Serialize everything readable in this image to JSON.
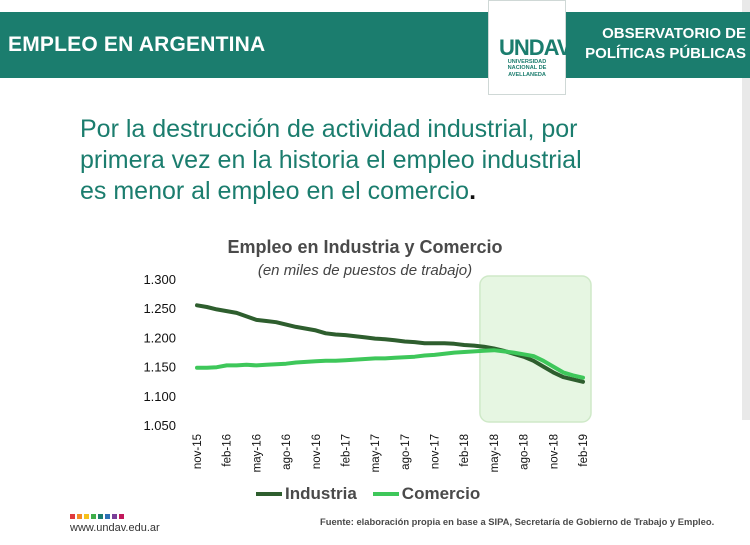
{
  "header": {
    "title": "EMPLEO EN ARGENTINA",
    "org_line1": "OBSERVATORIO DE",
    "org_line2": "POLÍTICAS PÚBLICAS",
    "logo_mark": "UNDAV",
    "logo_line1": "UNIVERSIDAD",
    "logo_line2": "NACIONAL DE",
    "logo_line3": "AVELLANEDA",
    "color": "#1b7d6e"
  },
  "headline": {
    "line1": "Por la destrucción de actividad industrial, por",
    "line2": "primera vez en la historia el empleo industrial",
    "line3": "es menor al empleo en el comercio",
    "end": "."
  },
  "chart_data": {
    "type": "line",
    "title": "Empleo en Industria y Comercio",
    "subtitle": "(en miles de puestos de trabajo)",
    "xlabel": "",
    "ylabel": "",
    "ylim": [
      1.05,
      1.3
    ],
    "yticks": [
      "1.300",
      "1.250",
      "1.200",
      "1.150",
      "1.100",
      "1.050"
    ],
    "xticks": [
      "nov-15",
      "feb-16",
      "may-16",
      "ago-16",
      "nov-16",
      "feb-17",
      "may-17",
      "ago-17",
      "nov-17",
      "feb-18",
      "may-18",
      "ago-18",
      "nov-18",
      "feb-19"
    ],
    "x": [
      "nov-15",
      "dic-15",
      "ene-16",
      "feb-16",
      "mar-16",
      "abr-16",
      "may-16",
      "jun-16",
      "jul-16",
      "ago-16",
      "sep-16",
      "oct-16",
      "nov-16",
      "dic-16",
      "ene-17",
      "feb-17",
      "mar-17",
      "abr-17",
      "may-17",
      "jun-17",
      "jul-17",
      "ago-17",
      "sep-17",
      "oct-17",
      "nov-17",
      "dic-17",
      "ene-18",
      "feb-18",
      "mar-18",
      "abr-18",
      "may-18",
      "jun-18",
      "jul-18",
      "ago-18",
      "sep-18",
      "oct-18",
      "nov-18",
      "dic-18",
      "ene-19",
      "feb-19"
    ],
    "series": [
      {
        "name": "Industria",
        "color": "#2e5e2e",
        "values": [
          1.255,
          1.252,
          1.248,
          1.245,
          1.242,
          1.236,
          1.23,
          1.228,
          1.226,
          1.222,
          1.218,
          1.215,
          1.212,
          1.207,
          1.205,
          1.204,
          1.202,
          1.2,
          1.198,
          1.197,
          1.195,
          1.193,
          1.192,
          1.19,
          1.19,
          1.19,
          1.189,
          1.187,
          1.186,
          1.184,
          1.181,
          1.177,
          1.172,
          1.167,
          1.16,
          1.15,
          1.14,
          1.132,
          1.128,
          1.124
        ]
      },
      {
        "name": "Comercio",
        "color": "#3ec75a",
        "values": [
          1.148,
          1.148,
          1.149,
          1.152,
          1.152,
          1.153,
          1.152,
          1.153,
          1.154,
          1.155,
          1.157,
          1.158,
          1.159,
          1.16,
          1.16,
          1.161,
          1.162,
          1.163,
          1.164,
          1.164,
          1.165,
          1.166,
          1.167,
          1.169,
          1.17,
          1.172,
          1.174,
          1.175,
          1.176,
          1.177,
          1.178,
          1.176,
          1.174,
          1.171,
          1.168,
          1.16,
          1.15,
          1.14,
          1.135,
          1.131
        ]
      }
    ],
    "highlight": {
      "from": "may-18",
      "to": "feb-19"
    },
    "grid": false,
    "legend_position": "bottom"
  },
  "footer": {
    "url": "www.undav.edu.ar",
    "source": "Fuente: elaboración propia en base a SIPA, Secretaría de Gobierno de Trabajo y Empleo.",
    "dot_colors": [
      "#e03a3e",
      "#f28c28",
      "#f6c21a",
      "#3fae49",
      "#1b7d6e",
      "#2d6fb5",
      "#7a3f98",
      "#c2185b"
    ]
  }
}
